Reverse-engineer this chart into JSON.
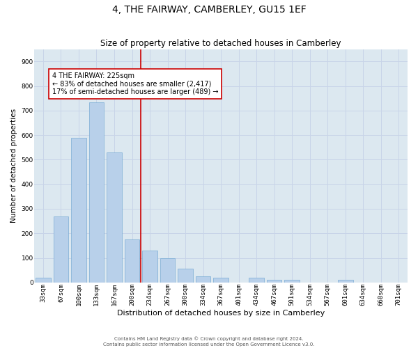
{
  "title": "4, THE FAIRWAY, CAMBERLEY, GU15 1EF",
  "subtitle": "Size of property relative to detached houses in Camberley",
  "xlabel": "Distribution of detached houses by size in Camberley",
  "ylabel": "Number of detached properties",
  "categories": [
    "33sqm",
    "67sqm",
    "100sqm",
    "133sqm",
    "167sqm",
    "200sqm",
    "234sqm",
    "267sqm",
    "300sqm",
    "334sqm",
    "367sqm",
    "401sqm",
    "434sqm",
    "467sqm",
    "501sqm",
    "534sqm",
    "567sqm",
    "601sqm",
    "634sqm",
    "668sqm",
    "701sqm"
  ],
  "values": [
    18,
    270,
    590,
    735,
    530,
    175,
    130,
    100,
    55,
    25,
    20,
    0,
    18,
    10,
    10,
    0,
    0,
    10,
    0,
    0,
    0
  ],
  "bar_color": "#b8d0ea",
  "bar_edge_color": "#7aadd4",
  "vline_color": "#cc0000",
  "annotation_text": "4 THE FAIRWAY: 225sqm\n← 83% of detached houses are smaller (2,417)\n17% of semi-detached houses are larger (489) →",
  "annotation_box_color": "white",
  "annotation_box_edge_color": "#cc0000",
  "ylim": [
    0,
    950
  ],
  "yticks": [
    0,
    100,
    200,
    300,
    400,
    500,
    600,
    700,
    800,
    900
  ],
  "grid_color": "#c8d4e8",
  "background_color": "#dce8f0",
  "footer_line1": "Contains HM Land Registry data © Crown copyright and database right 2024.",
  "footer_line2": "Contains public sector information licensed under the Open Government Licence v3.0.",
  "title_fontsize": 10,
  "subtitle_fontsize": 8.5,
  "xlabel_fontsize": 8,
  "ylabel_fontsize": 7.5,
  "tick_fontsize": 6.5,
  "annotation_fontsize": 7,
  "footer_fontsize": 5
}
